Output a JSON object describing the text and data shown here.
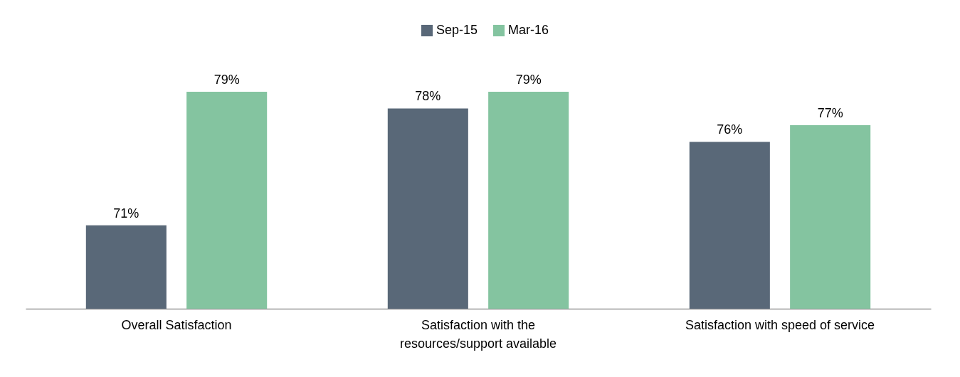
{
  "chart_data": {
    "type": "bar",
    "categories": [
      "Overall Satisfaction",
      "Satisfaction with the\nresources/support available",
      "Satisfaction with speed of service"
    ],
    "series": [
      {
        "name": "Sep-15",
        "color": "#596878",
        "values": [
          71,
          78,
          76
        ],
        "value_labels": [
          "71%",
          "78%",
          "76%"
        ]
      },
      {
        "name": "Mar-16",
        "color": "#84c4a0",
        "values": [
          79,
          79,
          77
        ],
        "value_labels": [
          "79%",
          "79%",
          "77%"
        ]
      }
    ],
    "ylim": [
      66,
      79
    ],
    "tick_labels": "x",
    "grid": false,
    "legend": "top"
  }
}
